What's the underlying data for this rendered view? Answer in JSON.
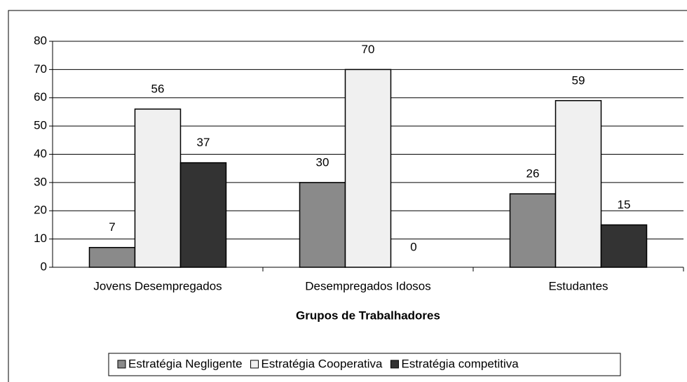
{
  "chart_data": {
    "type": "bar",
    "x_label": "Grupos de Trabalhadores",
    "categories": [
      "Jovens Desempregados",
      "Desempregados Idosos",
      "Estudantes"
    ],
    "series": [
      {
        "name": "Estratégia Negligente",
        "color": "#8a8a8a",
        "values": [
          7,
          30,
          26
        ]
      },
      {
        "name": "Estratégia Cooperativa",
        "color": "#f0f0f0",
        "values": [
          56,
          70,
          59
        ]
      },
      {
        "name": "Estratégia competitiva",
        "color": "#333333",
        "values": [
          37,
          0,
          15
        ]
      }
    ],
    "ylim": [
      0,
      80
    ],
    "yticks": [
      0,
      10,
      20,
      30,
      40,
      50,
      60,
      70,
      80
    ],
    "grid": true,
    "legend": "bottom"
  }
}
